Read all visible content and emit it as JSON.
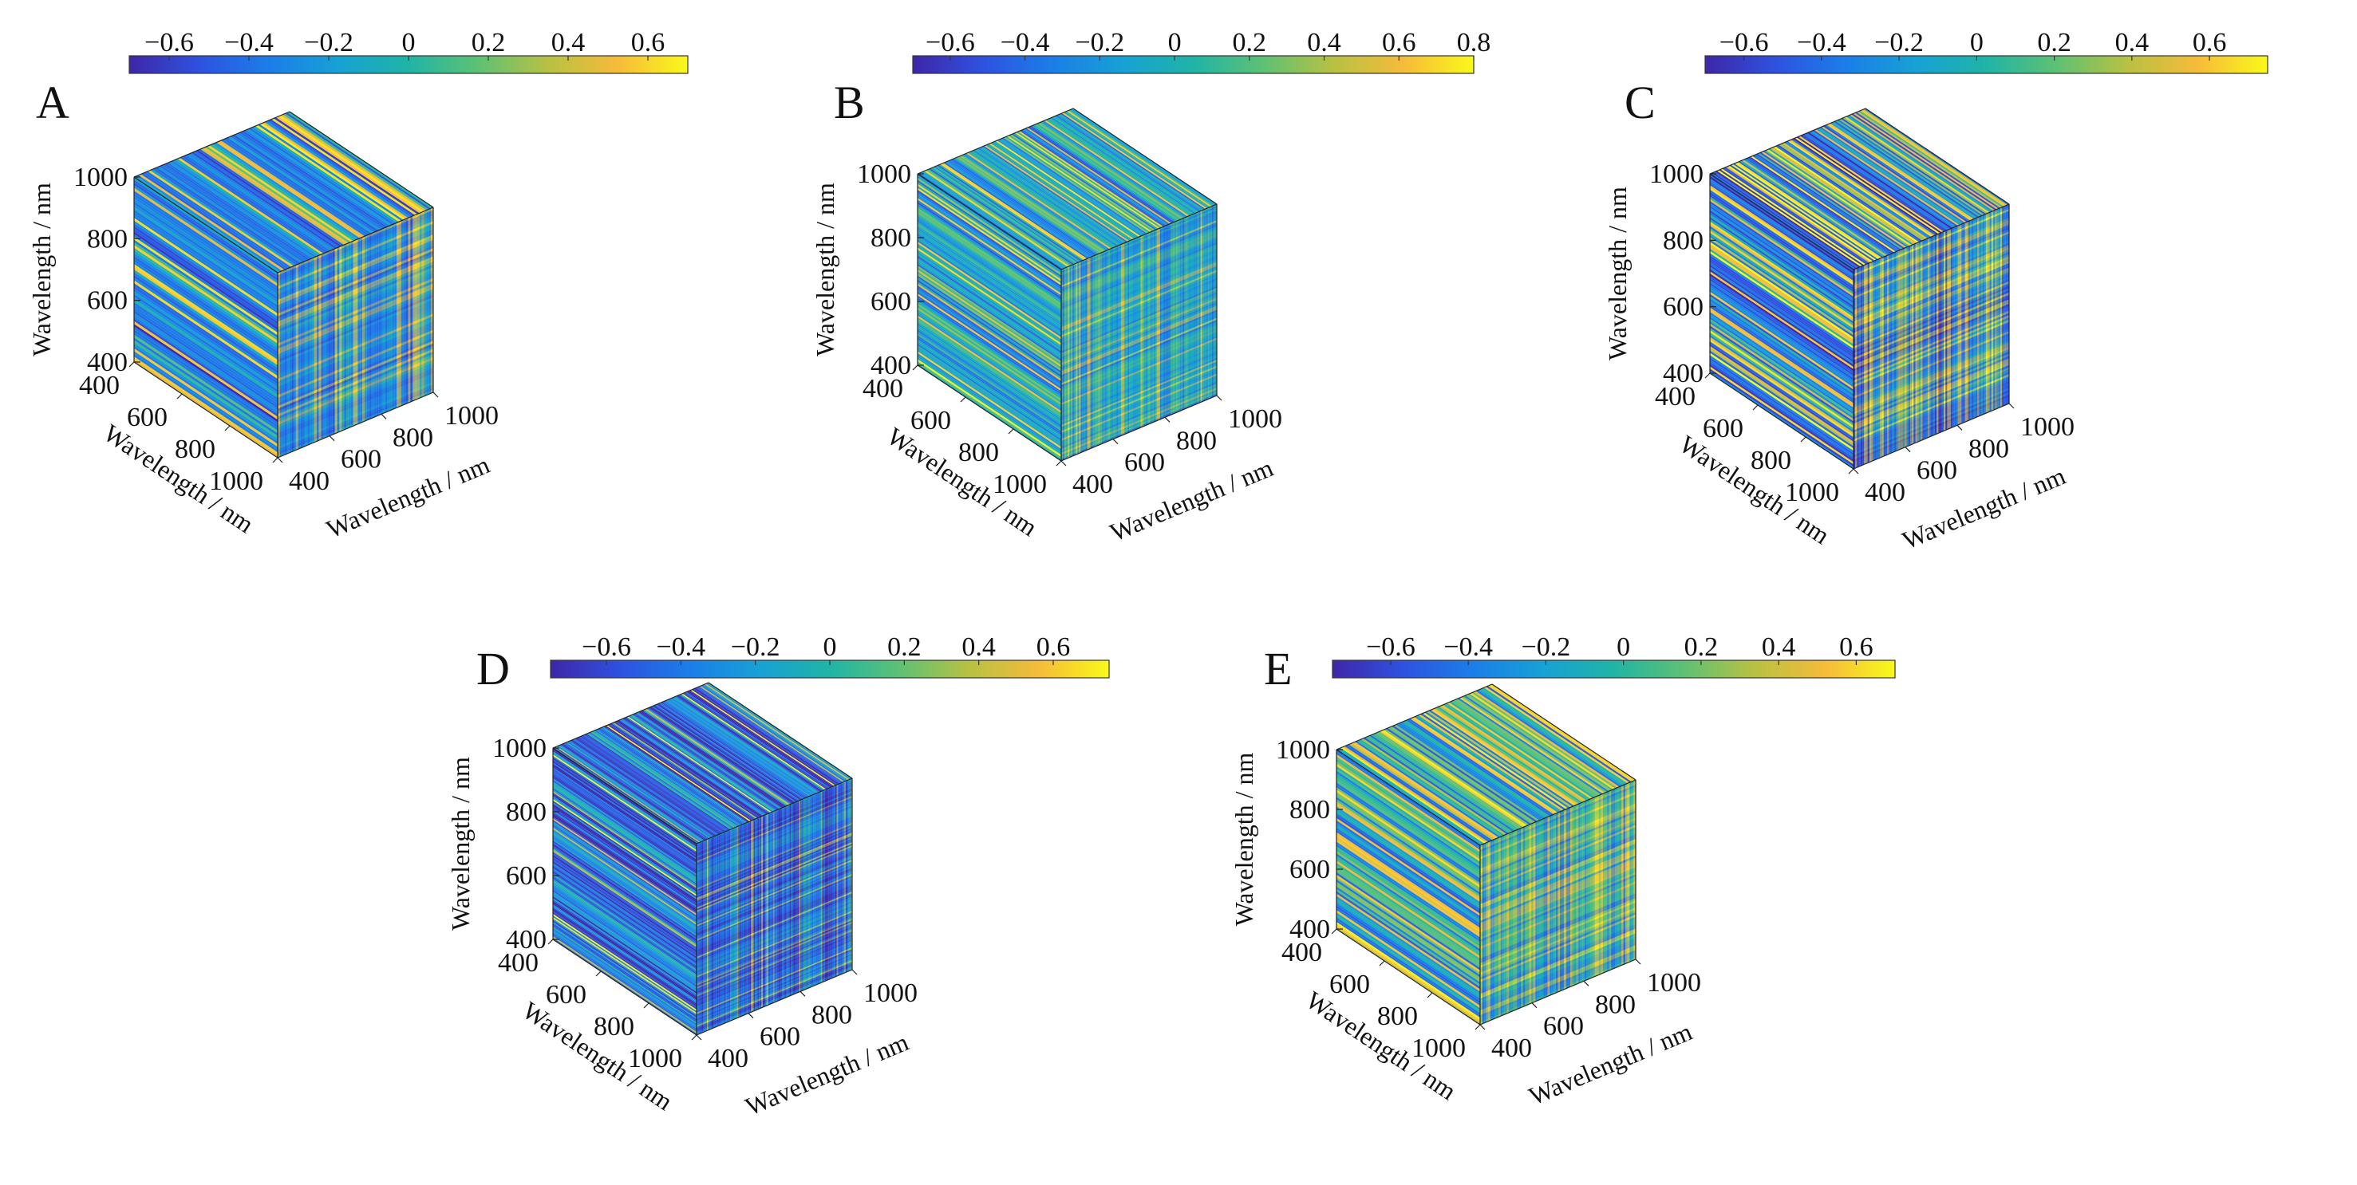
{
  "figure": {
    "colormap": [
      "#3e26a8",
      "#2e52e0",
      "#1b7ee8",
      "#17a1d5",
      "#20b4a6",
      "#5ec174",
      "#b8c143",
      "#f6bb3a",
      "#f9f91a"
    ]
  },
  "chart_data": [
    {
      "type": "heatmap",
      "panel_label": "A",
      "view": "3d-cube",
      "colorbar": {
        "ticks": [
          "−0.6",
          "−0.4",
          "−0.2",
          "0",
          "0.2",
          "0.4",
          "0.6"
        ],
        "range": [
          -0.7,
          0.7
        ]
      },
      "axes": {
        "x": {
          "label": "Wavelength / nm",
          "ticks": [
            "400",
            "600",
            "800",
            "1000"
          ],
          "range": [
            400,
            1000
          ]
        },
        "y": {
          "label": "Wavelength / nm",
          "ticks": [
            "400",
            "600",
            "800",
            "1000"
          ],
          "range": [
            400,
            1000
          ]
        },
        "z": {
          "label": "Wavelength / nm",
          "ticks": [
            "400",
            "600",
            "800",
            "1000"
          ],
          "range": [
            400,
            1000
          ]
        }
      },
      "pattern": {
        "seed": 11,
        "bands": 34,
        "amplitude": 0.3,
        "spread": 0.55,
        "speckle": 0.08
      }
    },
    {
      "type": "heatmap",
      "panel_label": "B",
      "view": "3d-cube",
      "colorbar": {
        "ticks": [
          "−0.6",
          "−0.4",
          "−0.2",
          "0",
          "0.2",
          "0.4",
          "0.6",
          "0.8"
        ],
        "range": [
          -0.7,
          0.8
        ]
      },
      "axes": {
        "x": {
          "label": "Wavelength / nm",
          "ticks": [
            "400",
            "600",
            "800",
            "1000"
          ],
          "range": [
            400,
            1000
          ]
        },
        "y": {
          "label": "Wavelength / nm",
          "ticks": [
            "400",
            "600",
            "800",
            "1000"
          ],
          "range": [
            400,
            1000
          ]
        },
        "z": {
          "label": "Wavelength / nm",
          "ticks": [
            "400",
            "600",
            "800",
            "1000"
          ],
          "range": [
            400,
            1000
          ]
        }
      },
      "pattern": {
        "seed": 23,
        "bands": 48,
        "amplitude": 0.25,
        "spread": 0.45,
        "speckle": 0.12
      }
    },
    {
      "type": "heatmap",
      "panel_label": "C",
      "view": "3d-cube",
      "colorbar": {
        "ticks": [
          "−0.6",
          "−0.4",
          "−0.2",
          "0",
          "0.2",
          "0.4",
          "0.6"
        ],
        "range": [
          -0.7,
          0.75
        ]
      },
      "axes": {
        "x": {
          "label": "Wavelength / nm",
          "ticks": [
            "400",
            "600",
            "800",
            "1000"
          ],
          "range": [
            400,
            1000
          ]
        },
        "y": {
          "label": "Wavelength / nm",
          "ticks": [
            "400",
            "600",
            "800",
            "1000"
          ],
          "range": [
            400,
            1000
          ]
        },
        "z": {
          "label": "Wavelength / nm",
          "ticks": [
            "400",
            "600",
            "800",
            "1000"
          ],
          "range": [
            400,
            1000
          ]
        }
      },
      "pattern": {
        "seed": 37,
        "bands": 44,
        "amplitude": 0.45,
        "spread": 0.7,
        "speckle": 0.25
      }
    },
    {
      "type": "heatmap",
      "panel_label": "D",
      "view": "3d-cube",
      "colorbar": {
        "ticks": [
          "−0.6",
          "−0.4",
          "−0.2",
          "0",
          "0.2",
          "0.4",
          "0.6"
        ],
        "range": [
          -0.75,
          0.75
        ]
      },
      "axes": {
        "x": {
          "label": "Wavelength / nm",
          "ticks": [
            "400",
            "600",
            "800",
            "1000"
          ],
          "range": [
            400,
            1000
          ]
        },
        "y": {
          "label": "Wavelength / nm",
          "ticks": [
            "400",
            "600",
            "800",
            "1000"
          ],
          "range": [
            400,
            1000
          ]
        },
        "z": {
          "label": "Wavelength / nm",
          "ticks": [
            "400",
            "600",
            "800",
            "1000"
          ],
          "range": [
            400,
            1000
          ]
        }
      },
      "pattern": {
        "seed": 53,
        "bands": 60,
        "amplitude": 0.2,
        "spread": 0.55,
        "speckle": 0.35
      }
    },
    {
      "type": "heatmap",
      "panel_label": "E",
      "view": "3d-cube",
      "colorbar": {
        "ticks": [
          "−0.6",
          "−0.4",
          "−0.2",
          "0",
          "0.2",
          "0.4",
          "0.6"
        ],
        "range": [
          -0.75,
          0.7
        ]
      },
      "axes": {
        "x": {
          "label": "Wavelength / nm",
          "ticks": [
            "400",
            "600",
            "800",
            "1000"
          ],
          "range": [
            400,
            1000
          ]
        },
        "y": {
          "label": "Wavelength / nm",
          "ticks": [
            "400",
            "600",
            "800",
            "1000"
          ],
          "range": [
            400,
            1000
          ]
        },
        "z": {
          "label": "Wavelength / nm",
          "ticks": [
            "400",
            "600",
            "800",
            "1000"
          ],
          "range": [
            400,
            1000
          ]
        }
      },
      "pattern": {
        "seed": 71,
        "bands": 38,
        "amplitude": 0.35,
        "spread": 0.55,
        "speckle": 0.1
      }
    }
  ]
}
